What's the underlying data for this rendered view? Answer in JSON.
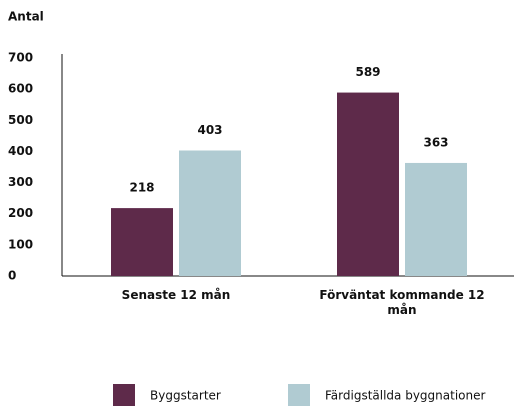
{
  "chart_data": {
    "type": "bar",
    "y_axis_label": "Antal",
    "categories": [
      "Senaste 12 mån",
      "Förväntat kommande 12 mån"
    ],
    "series": [
      {
        "name": "Byggstarter",
        "color": "#5e2a4a",
        "values": [
          218,
          589
        ]
      },
      {
        "name": "Färdigställda byggnationer",
        "color": "#b0cbd2",
        "values": [
          403,
          363
        ]
      }
    ],
    "ylim": [
      0,
      700
    ],
    "yticks": [
      0,
      100,
      200,
      300,
      400,
      500,
      600,
      700
    ],
    "grid": false,
    "legend": "bottom"
  }
}
